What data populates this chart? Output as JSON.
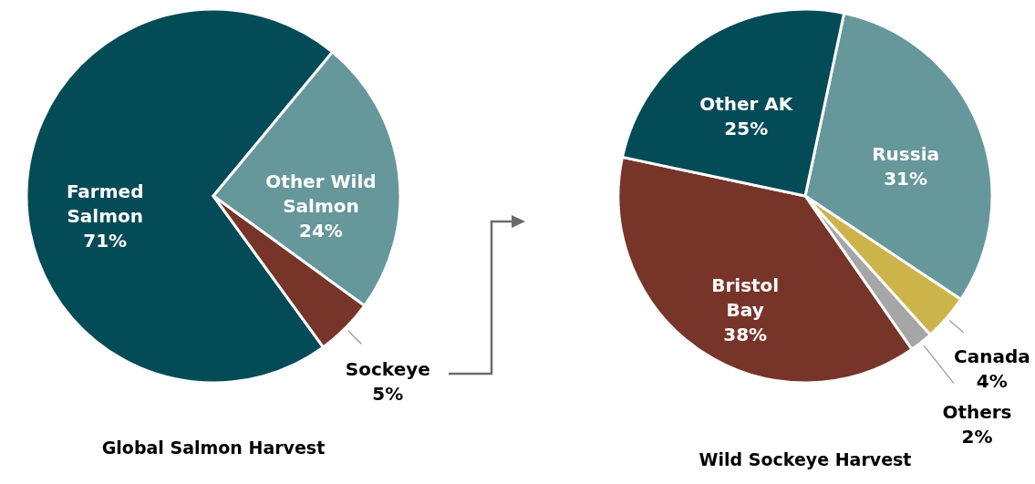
{
  "chart_data": [
    {
      "type": "pie",
      "title": "Global Salmon Harvest",
      "categories": [
        "Farmed Salmon",
        "Other Wild Salmon",
        "Sockeye"
      ],
      "values": [
        71,
        24,
        5
      ],
      "colors": [
        "#034b57",
        "#66979b",
        "#77352a"
      ],
      "value_labels": [
        "71%",
        "24%",
        "5%"
      ]
    },
    {
      "type": "pie",
      "title": "Wild Sockeye Harvest",
      "categories": [
        "Russia",
        "Canada",
        "Others",
        "Bristol Bay",
        "Other AK"
      ],
      "values": [
        31,
        4,
        2,
        38,
        25
      ],
      "colors": [
        "#66979b",
        "#cdb44a",
        "#a6a6a6",
        "#77352a",
        "#034b57"
      ],
      "value_labels": [
        "31%",
        "4%",
        "2%",
        "38%",
        "25%"
      ]
    }
  ]
}
